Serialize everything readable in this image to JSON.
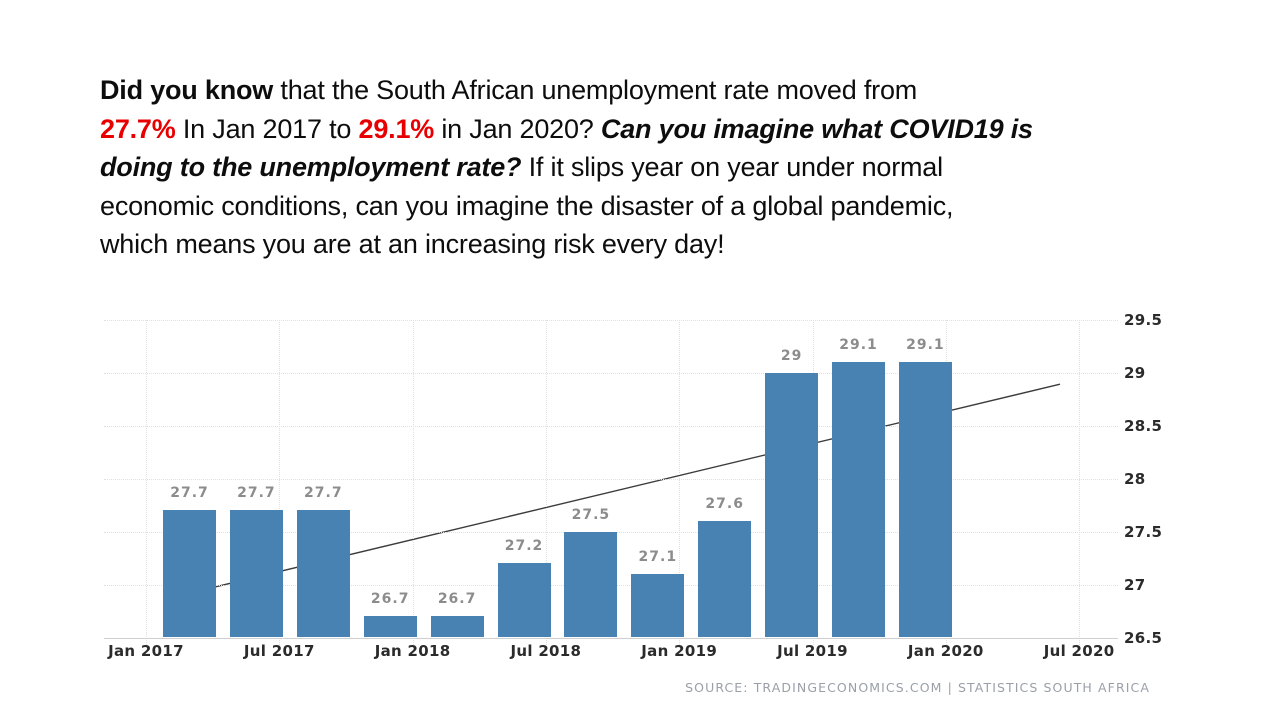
{
  "slide": {
    "paragraph_lines": [
      {
        "segments": [
          {
            "text": "Did you know",
            "style": "bold"
          },
          {
            "text": " that the South African unemployment rate moved from",
            "style": "normal"
          }
        ]
      },
      {
        "segments": [
          {
            "text": "27.7%",
            "style": "red"
          },
          {
            "text": " In Jan 2017 to ",
            "style": "normal"
          },
          {
            "text": "29.1%",
            "style": "red"
          },
          {
            "text": " in Jan 2020? ",
            "style": "normal"
          },
          {
            "text": "Can you imagine what COVID19 is",
            "style": "bold-italic"
          }
        ]
      },
      {
        "segments": [
          {
            "text": "doing to the unemployment rate?",
            "style": "bold-italic"
          },
          {
            "text": " If it slips year on year under normal",
            "style": "normal"
          }
        ]
      },
      {
        "segments": [
          {
            "text": "economic conditions, can you imagine the disaster of a global pandemic,",
            "style": "normal"
          }
        ]
      },
      {
        "segments": [
          {
            "text": "which means you are at an increasing risk every day!",
            "style": "normal"
          }
        ]
      }
    ]
  },
  "chart_data": {
    "type": "bar",
    "title": "",
    "xlabel": "",
    "ylabel": "",
    "values": [
      27.7,
      27.7,
      27.7,
      26.7,
      26.7,
      27.2,
      27.5,
      27.1,
      27.6,
      29,
      29.1,
      29.1
    ],
    "bar_value_labels": [
      "27.7",
      "27.7",
      "27.7",
      "26.7",
      "26.7",
      "27.2",
      "27.5",
      "27.1",
      "27.6",
      "29",
      "29.1",
      "29.1"
    ],
    "x_tick_labels": [
      "Jan 2017",
      "Jul 2017",
      "Jan 2018",
      "Jul 2018",
      "Jan 2019",
      "Jul 2019",
      "Jan 2020",
      "Jul 2020"
    ],
    "y_tick_labels": [
      "29.5",
      "29",
      "28.5",
      "28",
      "27.5",
      "27",
      "26.5"
    ],
    "ylim": [
      26.5,
      29.5
    ],
    "grid": true,
    "legend": "none",
    "trendline": {
      "start_value": 26.92,
      "end_value": 28.89
    },
    "source": "SOURCE: TRADINGECONOMICS.COM | STATISTICS SOUTH AFRICA"
  },
  "colors": {
    "bar": "#4882b2",
    "value_label": "#8c8c8c",
    "axis_label": "#2b2b2b",
    "grid": "#e0e0e0",
    "trend": "#3c3c3c",
    "source": "#9aa0a8",
    "red_text": "#e80000",
    "text": "#0d0d0d"
  }
}
